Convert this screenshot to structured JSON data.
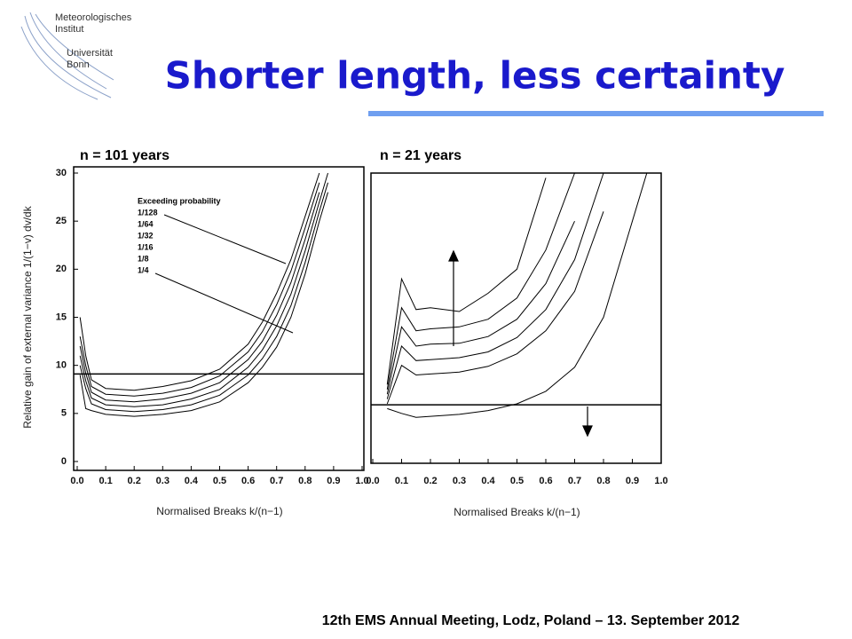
{
  "header": {
    "institute": "Meteorologisches",
    "institute2": "Institut",
    "university": "Universität",
    "university2": "Bonn"
  },
  "title": "Shorter length, less certainty",
  "footer": "12th EMS Annual Meeting, Lodz, Poland  –  13. September 2012",
  "chart_data": [
    {
      "type": "line",
      "title": "n = 101 years",
      "xlabel": "Normalised Breaks k/(n−1)",
      "ylabel": "Relative gain of external variance 1/(1−v) dv/dk",
      "legend_title": "Exceeding probability",
      "xlim": [
        0,
        1
      ],
      "ylim": [
        0,
        30
      ],
      "xticks": [
        {
          "value": 0,
          "label": "0.0"
        },
        0.1,
        0.2,
        0.3,
        0.4,
        0.5,
        0.6,
        0.7,
        0.8,
        0.9,
        {
          "value": 1,
          "label": "1.0"
        }
      ],
      "yticks": [
        0,
        5,
        10,
        15,
        20,
        25,
        30
      ],
      "hline": 9.1,
      "x": [
        0.01,
        0.03,
        0.05,
        0.1,
        0.2,
        0.3,
        0.4,
        0.5,
        0.6,
        0.65,
        0.7,
        0.75,
        0.8,
        0.85,
        0.88
      ],
      "series": [
        {
          "name": "1/128",
          "color": "#000000",
          "values": [
            15,
            11,
            8.5,
            7.6,
            7.4,
            7.8,
            8.4,
            9.6,
            12.2,
            14.5,
            17.5,
            21,
            25.5,
            30,
            null
          ]
        },
        {
          "name": "1/64",
          "color": "#000000",
          "values": [
            13,
            10,
            7.8,
            7.0,
            6.8,
            7.1,
            7.7,
            8.9,
            11.4,
            13.5,
            16.3,
            19.8,
            24.3,
            29,
            null
          ]
        },
        {
          "name": "1/32",
          "color": "#000000",
          "values": [
            12,
            9.2,
            7.2,
            6.4,
            6.2,
            6.5,
            7.1,
            8.2,
            10.6,
            12.5,
            15.2,
            18.6,
            23.1,
            28,
            null
          ]
        },
        {
          "name": "1/16",
          "color": "#000000",
          "values": [
            11,
            8.4,
            6.6,
            5.9,
            5.7,
            5.9,
            6.5,
            7.5,
            9.8,
            11.6,
            14.1,
            17.4,
            21.9,
            27,
            30
          ]
        },
        {
          "name": "1/8",
          "color": "#000000",
          "values": [
            10,
            7.6,
            6.0,
            5.4,
            5.2,
            5.4,
            5.9,
            6.9,
            9.0,
            10.7,
            13.0,
            16.2,
            20.7,
            26,
            29
          ]
        },
        {
          "name": "1/4",
          "color": "#000000",
          "values": [
            9,
            5.5,
            5.3,
            4.9,
            4.7,
            4.9,
            5.3,
            6.2,
            8.2,
            9.8,
            11.9,
            15,
            19.5,
            25,
            28
          ]
        }
      ]
    },
    {
      "type": "line",
      "title": "n = 21 years",
      "xlabel": "Normalised Breaks k/(n−1)",
      "xlim": [
        0,
        1
      ],
      "ylim": [
        0,
        30
      ],
      "xticks": [
        {
          "value": 0,
          "label": "0.0"
        },
        0.1,
        0.2,
        0.3,
        0.4,
        0.5,
        0.6,
        0.7,
        0.8,
        0.9,
        {
          "value": 1,
          "label": "1.0"
        }
      ],
      "hline": 5.9,
      "x": [
        0.05,
        0.1,
        0.15,
        0.2,
        0.3,
        0.4,
        0.5,
        0.6,
        0.7,
        0.8,
        0.9,
        0.95
      ],
      "series": [
        {
          "color": "#000000",
          "values": [
            8,
            19,
            15.8,
            16,
            15.6,
            17.5,
            20,
            29.5,
            null,
            null,
            null,
            null
          ]
        },
        {
          "color": "#000000",
          "values": [
            7.5,
            16,
            13.6,
            13.8,
            14,
            14.8,
            17,
            22,
            30,
            null,
            null,
            null
          ]
        },
        {
          "color": "#000000",
          "values": [
            7,
            14,
            12,
            12.2,
            12.3,
            13,
            14.8,
            18.5,
            25,
            null,
            null,
            null
          ]
        },
        {
          "color": "#000000",
          "values": [
            6.5,
            12,
            10.5,
            10.6,
            10.8,
            11.4,
            12.9,
            15.8,
            21,
            30,
            null,
            null
          ]
        },
        {
          "color": "#000000",
          "values": [
            6,
            10,
            9,
            9.1,
            9.3,
            9.9,
            11.2,
            13.6,
            17.7,
            26,
            null,
            null
          ]
        },
        {
          "color": "#000000",
          "values": [
            5.5,
            5.0,
            4.6,
            4.7,
            4.9,
            5.3,
            6.0,
            7.3,
            9.8,
            15,
            25,
            30
          ]
        }
      ]
    }
  ]
}
